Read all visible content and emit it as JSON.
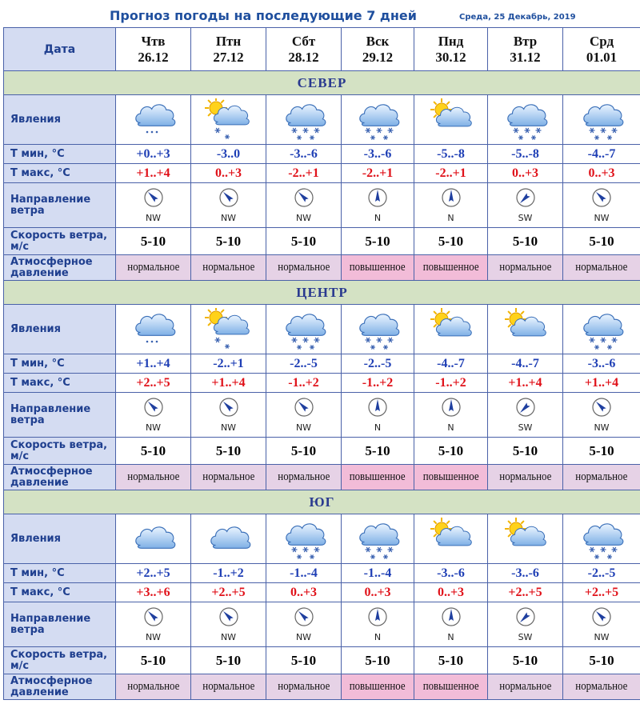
{
  "title": "Прогноз погоды на последующие 7 дней",
  "current_date": "Среда, 25 Декабрь, 2019",
  "labels": {
    "date": "Дата",
    "phenomena": "Явления",
    "tmin": "Т мин, °С",
    "tmax": "Т макс, °С",
    "wind_dir": "Направление ветра",
    "wind_speed": "Скорость ветра, м/с",
    "pressure": "Атмосферное давление"
  },
  "days": [
    {
      "dow": "Чтв",
      "date": "26.12"
    },
    {
      "dow": "Птн",
      "date": "27.12"
    },
    {
      "dow": "Сбт",
      "date": "28.12"
    },
    {
      "dow": "Вск",
      "date": "29.12"
    },
    {
      "dow": "Пнд",
      "date": "30.12"
    },
    {
      "dow": "Втр",
      "date": "31.12"
    },
    {
      "dow": "Срд",
      "date": "01.01"
    }
  ],
  "regions": [
    {
      "name": "СЕВЕР",
      "icons": [
        "cloud-light-snow-icon",
        "sun-cloud-snow-icon",
        "cloud-snow-icon",
        "cloud-snow-icon",
        "sun-cloud-icon",
        "cloud-snow-icon",
        "cloud-snow-icon"
      ],
      "tmin": [
        "+0..+3",
        "-3..0",
        "-3..-6",
        "-3..-6",
        "-5..-8",
        "-5..-8",
        "-4..-7"
      ],
      "tmax": [
        "+1..+4",
        "0..+3",
        "-2..+1",
        "-2..+1",
        "-2..+1",
        "0..+3",
        "0..+3"
      ],
      "wind": [
        "NW",
        "NW",
        "NW",
        "N",
        "N",
        "SW",
        "NW"
      ],
      "speed": [
        "5-10",
        "5-10",
        "5-10",
        "5-10",
        "5-10",
        "5-10",
        "5-10"
      ],
      "pressure": [
        "нормальное",
        "нормальное",
        "нормальное",
        "повышенное",
        "повышенное",
        "нормальное",
        "нормальное"
      ]
    },
    {
      "name": "ЦЕНТР",
      "icons": [
        "cloud-light-snow-icon",
        "sun-cloud-snow-icon",
        "cloud-snow-icon",
        "cloud-snow-icon",
        "sun-cloud-icon",
        "sun-cloud-icon",
        "cloud-snow-icon"
      ],
      "tmin": [
        "+1..+4",
        "-2..+1",
        "-2..-5",
        "-2..-5",
        "-4..-7",
        "-4..-7",
        "-3..-6"
      ],
      "tmax": [
        "+2..+5",
        "+1..+4",
        "-1..+2",
        "-1..+2",
        "-1..+2",
        "+1..+4",
        "+1..+4"
      ],
      "wind": [
        "NW",
        "NW",
        "NW",
        "N",
        "N",
        "SW",
        "NW"
      ],
      "speed": [
        "5-10",
        "5-10",
        "5-10",
        "5-10",
        "5-10",
        "5-10",
        "5-10"
      ],
      "pressure": [
        "нормальное",
        "нормальное",
        "нормальное",
        "повышенное",
        "повышенное",
        "нормальное",
        "нормальное"
      ]
    },
    {
      "name": "ЮГ",
      "icons": [
        "cloud-icon",
        "cloud-icon",
        "cloud-snow-icon",
        "cloud-snow-icon",
        "sun-cloud-icon",
        "sun-cloud-icon",
        "cloud-snow-icon"
      ],
      "tmin": [
        "+2..+5",
        "-1..+2",
        "-1..-4",
        "-1..-4",
        "-3..-6",
        "-3..-6",
        "-2..-5"
      ],
      "tmax": [
        "+3..+6",
        "+2..+5",
        "0..+3",
        "0..+3",
        "0..+3",
        "+2..+5",
        "+2..+5"
      ],
      "wind": [
        "NW",
        "NW",
        "NW",
        "N",
        "N",
        "SW",
        "NW"
      ],
      "speed": [
        "5-10",
        "5-10",
        "5-10",
        "5-10",
        "5-10",
        "5-10",
        "5-10"
      ],
      "pressure": [
        "нормальное",
        "нормальное",
        "нормальное",
        "повышенное",
        "повышенное",
        "нормальное",
        "нормальное"
      ]
    }
  ],
  "colors": {
    "border": "#4a62a8",
    "label_bg": "#d4dcf2",
    "region_bg": "#d4e2c4",
    "pressure_normal": "#e6d2e6",
    "pressure_high": "#f2bcd8",
    "tmin_text": "#1f3fb5",
    "tmax_text": "#e0121a"
  }
}
